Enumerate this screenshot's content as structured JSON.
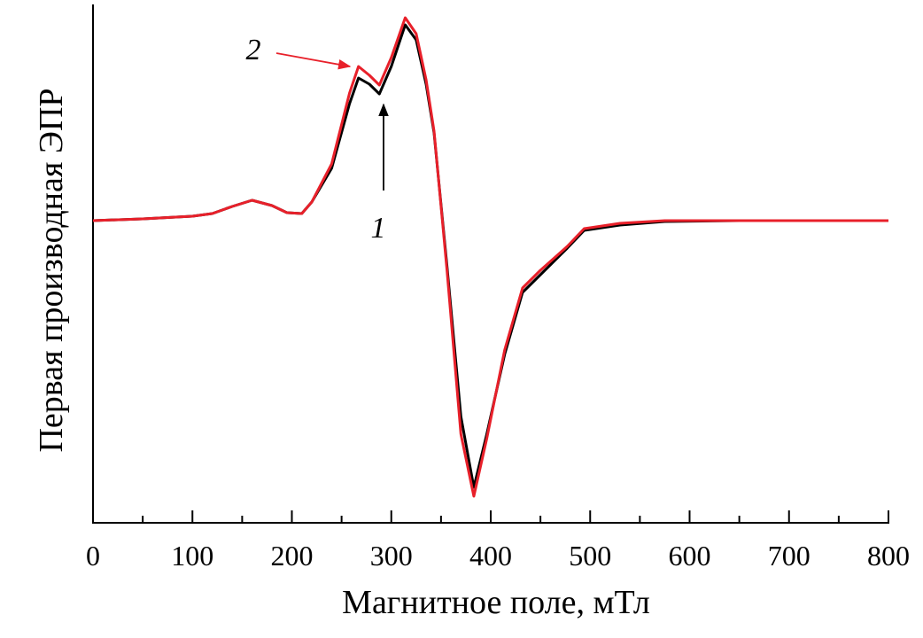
{
  "chart_data": {
    "type": "line",
    "xlabel": "Магнитное поле, мТл",
    "ylabel": "Первая производная ЭПР",
    "x": [
      0,
      50,
      100,
      120,
      140,
      160,
      180,
      195,
      210,
      220,
      240,
      258,
      267,
      278,
      288,
      300,
      314,
      325,
      335,
      343,
      356,
      370,
      383,
      396,
      414,
      432,
      450,
      477,
      494,
      530,
      575,
      650,
      800
    ],
    "series": [
      {
        "name": "1",
        "color": "#000000",
        "values": [
          -0.01,
          0.01,
          0.04,
          0.07,
          0.15,
          0.22,
          0.16,
          0.08,
          0.07,
          0.2,
          0.58,
          1.31,
          1.6,
          1.53,
          1.42,
          1.73,
          2.2,
          2.03,
          1.53,
          0.98,
          -0.52,
          -2.22,
          -3.02,
          -2.42,
          -1.52,
          -0.82,
          -0.62,
          -0.32,
          -0.12,
          -0.06,
          -0.02,
          -0.01,
          -0.01
        ]
      },
      {
        "name": "2",
        "color": "#e8202a",
        "values": [
          -0.01,
          0.01,
          0.04,
          0.07,
          0.15,
          0.22,
          0.16,
          0.08,
          0.07,
          0.2,
          0.63,
          1.43,
          1.73,
          1.63,
          1.52,
          1.83,
          2.28,
          2.1,
          1.58,
          1.0,
          -0.57,
          -2.42,
          -3.12,
          -2.47,
          -1.47,
          -0.77,
          -0.57,
          -0.3,
          -0.1,
          -0.04,
          -0.01,
          -0.01,
          -0.01
        ]
      }
    ],
    "xlim": [
      0,
      800
    ],
    "xticks": [
      0,
      100,
      200,
      300,
      400,
      500,
      600,
      700,
      800
    ],
    "xminorticks": [
      50,
      150,
      250,
      350,
      450,
      550,
      650,
      750
    ],
    "ylim": [
      -3.42,
      2.43
    ]
  }
}
